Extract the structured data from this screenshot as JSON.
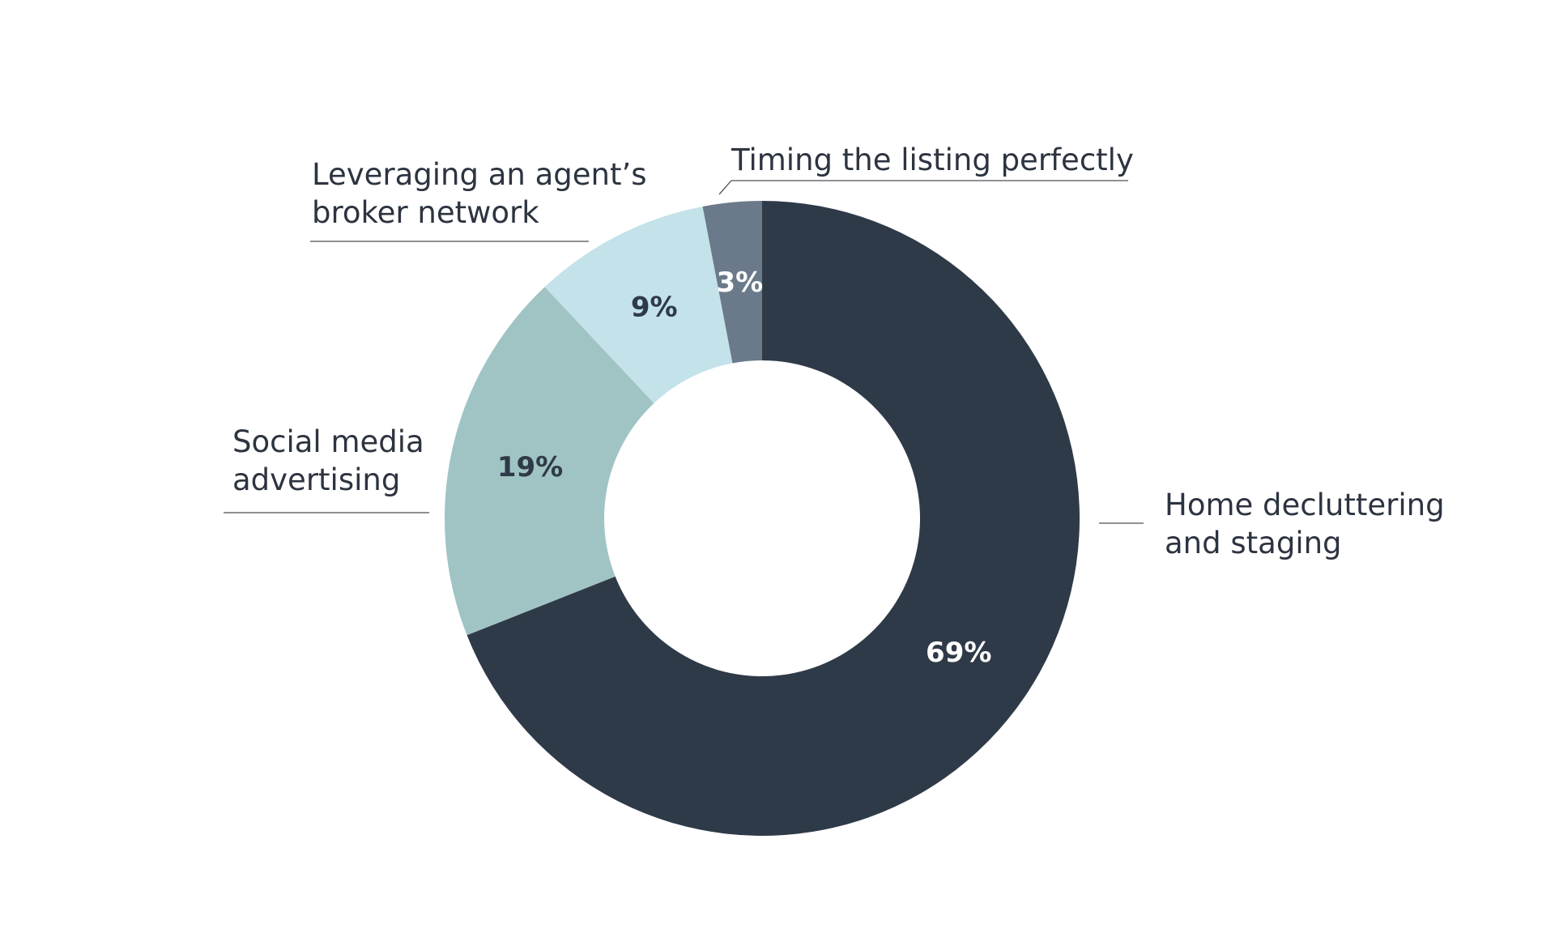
{
  "chart_data": {
    "type": "pie",
    "donut": true,
    "start": "top",
    "direction": "clockwise",
    "grid": false,
    "legend": "none",
    "title": "",
    "slices": [
      {
        "key": "staging",
        "label_lines": [
          "Home decluttering",
          "and staging"
        ],
        "value": 69,
        "value_label": "69%",
        "color": "#2f3a48",
        "value_text_color": "#ffffff"
      },
      {
        "key": "social",
        "label_lines": [
          "Social media",
          "advertising"
        ],
        "value": 19,
        "value_label": "19%",
        "color": "#a0c4c4",
        "value_text_color": "#2f3a48"
      },
      {
        "key": "broker",
        "label_lines": [
          "Leveraging an agent’s",
          "broker network"
        ],
        "value": 9,
        "value_label": "9%",
        "color": "#c4e2ea",
        "value_text_color": "#2f3a48"
      },
      {
        "key": "timing",
        "label_lines": [
          "Timing the listing perfectly"
        ],
        "value": 3,
        "value_label": "3%",
        "color": "#6a7a8a",
        "value_text_color": "#ffffff"
      }
    ]
  }
}
